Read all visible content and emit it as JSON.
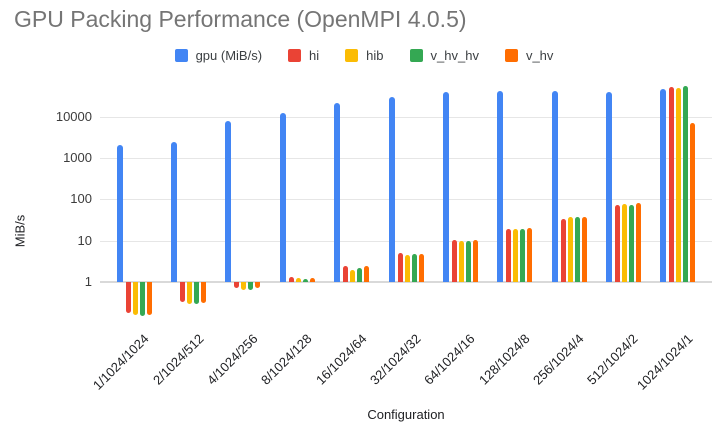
{
  "title": "GPU Packing Performance (OpenMPI 4.0.5)",
  "axes": {
    "y_title": "MiB/s",
    "x_title": "Configuration",
    "y_tick_labels": [
      "1",
      "10",
      "100",
      "1000",
      "10000"
    ]
  },
  "chart_data": {
    "type": "bar",
    "title": "GPU Packing Performance (OpenMPI 4.0.5)",
    "xlabel": "Configuration",
    "ylabel": "MiB/s",
    "y_scale": "log",
    "ylim": [
      0.1,
      60000
    ],
    "y_ticks": [
      1,
      10,
      100,
      1000,
      10000
    ],
    "grid": true,
    "legend_position": "top",
    "categories": [
      "1/1024/1024",
      "2/1024/512",
      "4/1024/256",
      "8/1024/128",
      "16/1024/64",
      "32/1024/32",
      "64/1024/16",
      "128/1024/8",
      "256/1024/4",
      "512/1024/2",
      "1024/1024/1"
    ],
    "series": [
      {
        "name": "gpu (MiB/s)",
        "color": "#4285F4",
        "values": [
          2100,
          2500,
          7900,
          12300,
          22000,
          31000,
          39000,
          41000,
          42000,
          39000,
          48000
        ]
      },
      {
        "name": "hi",
        "color": "#EA4335",
        "values": [
          0.18,
          0.32,
          0.7,
          1.3,
          2.4,
          4.9,
          10.2,
          19.5,
          33,
          72,
          52000
        ]
      },
      {
        "name": "hib",
        "color": "#FBBC04",
        "values": [
          0.16,
          0.3,
          0.65,
          1.25,
          2.0,
          4.5,
          9.8,
          19,
          37,
          79,
          49000
        ]
      },
      {
        "name": "v_hv_hv",
        "color": "#34A853",
        "values": [
          0.15,
          0.3,
          0.65,
          1.2,
          2.2,
          4.7,
          10,
          19.5,
          38,
          75,
          55000
        ]
      },
      {
        "name": "v_hv",
        "color": "#FF6D01",
        "values": [
          0.16,
          0.31,
          0.7,
          1.25,
          2.4,
          4.8,
          10.5,
          20,
          38,
          80,
          7000
        ]
      }
    ]
  }
}
